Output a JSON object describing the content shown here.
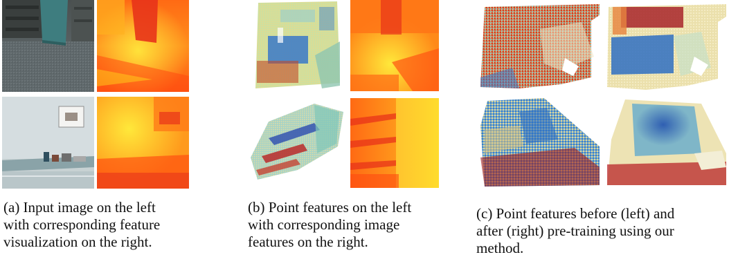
{
  "figure": {
    "panels": [
      {
        "id": "a",
        "caption_lines": [
          "(a) Input image on the left",
          "with corresponding feature",
          "visualization on the right."
        ]
      },
      {
        "id": "b",
        "caption_lines": [
          "(b) Point features on the left",
          "with corresponding image",
          "features on the right."
        ]
      },
      {
        "id": "c",
        "caption_lines": [
          "(c) Point features before (left) and",
          "after (right) pre-training using our",
          "method."
        ]
      }
    ],
    "colors": {
      "heat_hot": "#e8331a",
      "heat_mid": "#ff8c1a",
      "heat_warm": "#ffd21a",
      "cool_blue": "#2f6fc2",
      "teal": "#7fc6b8",
      "cream": "#f2e6b0",
      "dark_red": "#9e1b1b",
      "gray_photo": "#5c6466",
      "shelf_teal": "#3e7d7f"
    }
  }
}
